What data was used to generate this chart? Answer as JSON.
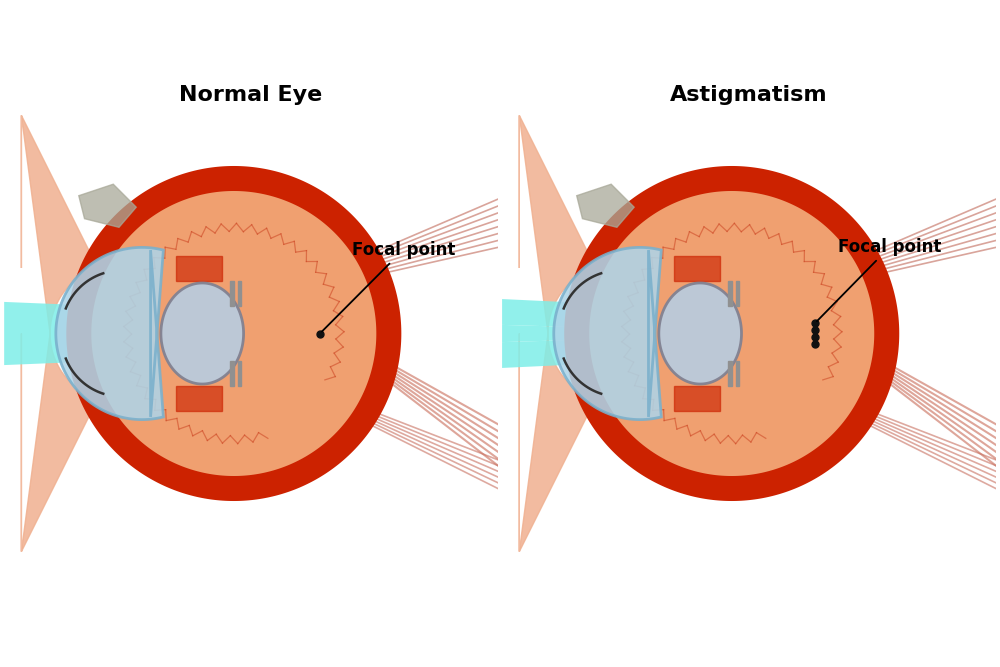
{
  "title_left": "Normal Eye",
  "title_right": "Astigmatism",
  "label_focal": "Focal point",
  "bg_color": "#ffffff",
  "title_fontsize": 16,
  "label_fontsize": 12,
  "eye_outer_color": "#cc2200",
  "eye_inner_color": "#f0a070",
  "cornea_color": "#aed4e8",
  "lens_color": "#b8cce0",
  "lens_outline_color": "#808090",
  "light_beam_color": "#7eeee8",
  "focal_dot_color": "#111111",
  "nerve_color": "#e8a090",
  "muscle_color": "#c87060",
  "tissue_color": "#f0b090",
  "red_ring_lw": 18
}
